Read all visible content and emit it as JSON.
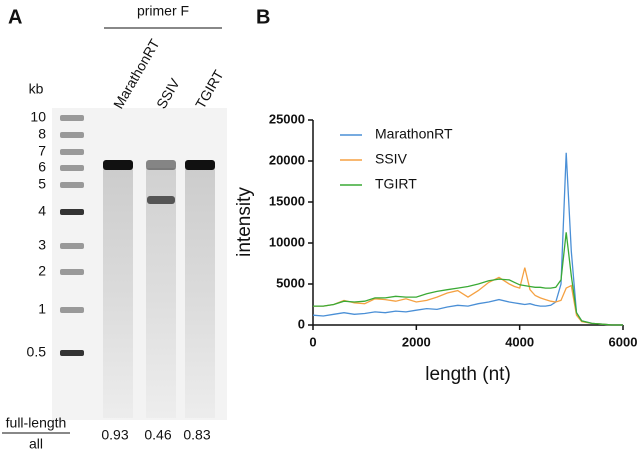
{
  "gel": {
    "panel": "A",
    "primer": "primer F",
    "lanes": [
      "MarathonRT",
      "SSIV",
      "TGIRT"
    ],
    "size_unit": "kb",
    "ladder": [
      10,
      8,
      7,
      6,
      5,
      4,
      3,
      2,
      1,
      0.5
    ],
    "ratio_numerator": "full-length",
    "ratio_denominator": "all",
    "ratios": [
      0.93,
      0.46,
      0.83
    ]
  },
  "chart_data": {
    "type": "line",
    "panel": "B",
    "x_label": "length (nt)",
    "y_label": "intensity",
    "x": [
      0,
      200,
      400,
      600,
      800,
      1000,
      1200,
      1400,
      1600,
      1800,
      2000,
      2200,
      2400,
      2600,
      2800,
      3000,
      3200,
      3400,
      3600,
      3800,
      3900,
      4000,
      4100,
      4200,
      4300,
      4400,
      4500,
      4600,
      4700,
      4800,
      4900,
      5000,
      5100,
      5200,
      5400,
      5600,
      5800,
      6000
    ],
    "series": [
      {
        "name": "MarathonRT",
        "color": "#4a8fd6",
        "values": [
          1200,
          1100,
          1300,
          1500,
          1300,
          1400,
          1600,
          1500,
          1700,
          1600,
          1800,
          2000,
          1900,
          2200,
          2400,
          2300,
          2600,
          2800,
          3100,
          2800,
          2700,
          2600,
          2500,
          2600,
          2400,
          2300,
          2300,
          2400,
          2800,
          5000,
          21000,
          9000,
          1500,
          500,
          200,
          100,
          0,
          0
        ]
      },
      {
        "name": "SSIV",
        "color": "#f5a142",
        "values": [
          2300,
          2300,
          2500,
          3000,
          2700,
          2600,
          3200,
          3100,
          2900,
          3200,
          2800,
          3000,
          3400,
          3900,
          4200,
          3400,
          4200,
          5200,
          5800,
          5000,
          4700,
          4500,
          7000,
          4300,
          3600,
          3300,
          3100,
          2900,
          2800,
          3000,
          4500,
          4800,
          1200,
          400,
          200,
          100,
          0,
          0
        ]
      },
      {
        "name": "TGIRT",
        "color": "#3aaa35",
        "values": [
          2300,
          2300,
          2500,
          2900,
          2800,
          2900,
          3300,
          3300,
          3500,
          3400,
          3400,
          3800,
          4100,
          4300,
          4500,
          4700,
          5000,
          5400,
          5600,
          5500,
          5200,
          4900,
          4800,
          4700,
          4600,
          4600,
          4500,
          4500,
          4600,
          5500,
          11300,
          6000,
          1500,
          500,
          200,
          100,
          0,
          0
        ]
      }
    ],
    "xlim": [
      0,
      6000
    ],
    "xticks": [
      0,
      2000,
      4000,
      6000
    ],
    "ylim": [
      0,
      25000
    ],
    "yticks": [
      0,
      5000,
      10000,
      15000,
      20000,
      25000
    ],
    "legend": "upper-left"
  }
}
